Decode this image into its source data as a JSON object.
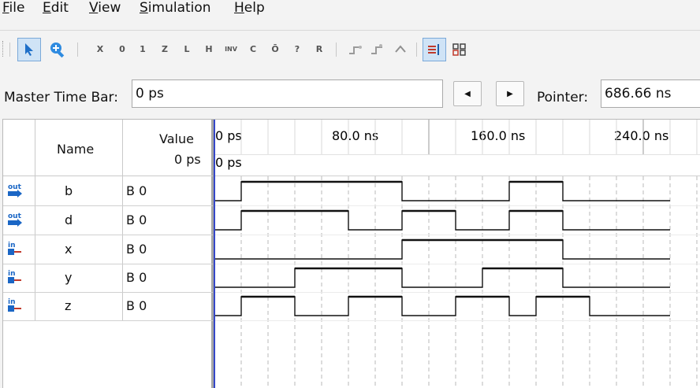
{
  "menu": {
    "items": [
      {
        "mnemonic": "F",
        "rest": "ile"
      },
      {
        "mnemonic": "E",
        "rest": "dit"
      },
      {
        "mnemonic": "V",
        "rest": "iew"
      },
      {
        "mnemonic": "S",
        "rest": "imulation"
      },
      {
        "mnemonic": "H",
        "rest": "elp"
      }
    ]
  },
  "toolbar": {
    "buttons": [
      {
        "name": "selection-tool",
        "icon": "pointer-arrow-icon"
      },
      {
        "name": "zoom-tool",
        "icon": "zoom-in-icon"
      },
      {
        "name": "force-unknown",
        "glyph": "X"
      },
      {
        "name": "force-low",
        "glyph": "0"
      },
      {
        "name": "force-high",
        "glyph": "1"
      },
      {
        "name": "force-high-impedance",
        "glyph": "Z"
      },
      {
        "name": "force-weak-low",
        "glyph": "L"
      },
      {
        "name": "force-weak-high",
        "glyph": "H"
      },
      {
        "name": "invert",
        "glyph": "INV"
      },
      {
        "name": "count-value",
        "glyph": "C"
      },
      {
        "name": "overwrite-clock",
        "glyph": "Ō"
      },
      {
        "name": "arbitrary-value",
        "glyph": "?"
      },
      {
        "name": "random-values",
        "glyph": "R"
      },
      {
        "name": "snap-to-grid-1",
        "icon": "snap-icon"
      },
      {
        "name": "snap-to-grid-2",
        "icon": "snap-icon"
      },
      {
        "name": "reverse",
        "icon": "reverse-icon"
      },
      {
        "name": "insert-node",
        "icon": "insert-node-icon"
      },
      {
        "name": "grid-settings",
        "icon": "grid-icon"
      }
    ]
  },
  "timebar": {
    "master_label": "Master Time Bar:",
    "master_value": "0 ps",
    "pointer_label": "Pointer:",
    "pointer_value": "686.66 ns"
  },
  "grid": {
    "header_name": "Name",
    "header_value": "Value",
    "header_value_time": "0 ps",
    "time_labels": [
      "0 ps",
      "80.0 ns",
      "160.0 ns",
      "240.0 ns"
    ],
    "cursor_time": "0 ps",
    "signals": [
      {
        "type": "out",
        "name": "b",
        "value": "B 0",
        "wave": [
          0,
          1,
          1,
          1,
          1,
          1,
          1,
          0,
          0,
          0,
          0,
          1,
          1,
          0,
          0,
          0,
          0
        ]
      },
      {
        "type": "out",
        "name": "d",
        "value": "B 0",
        "wave": [
          0,
          1,
          1,
          1,
          1,
          0,
          0,
          1,
          1,
          0,
          0,
          1,
          1,
          0,
          0,
          0,
          0
        ]
      },
      {
        "type": "in",
        "name": "x",
        "value": "B 0",
        "wave": [
          0,
          0,
          0,
          0,
          0,
          0,
          0,
          1,
          1,
          1,
          1,
          1,
          1,
          0,
          0,
          0,
          0
        ]
      },
      {
        "type": "in",
        "name": "y",
        "value": "B 0",
        "wave": [
          0,
          0,
          0,
          1,
          1,
          1,
          1,
          0,
          0,
          0,
          1,
          1,
          1,
          0,
          0,
          0,
          0
        ]
      },
      {
        "type": "in",
        "name": "z",
        "value": "B 0",
        "wave": [
          0,
          1,
          1,
          0,
          0,
          1,
          1,
          0,
          0,
          1,
          1,
          0,
          1,
          1,
          0,
          0,
          0
        ]
      }
    ]
  }
}
